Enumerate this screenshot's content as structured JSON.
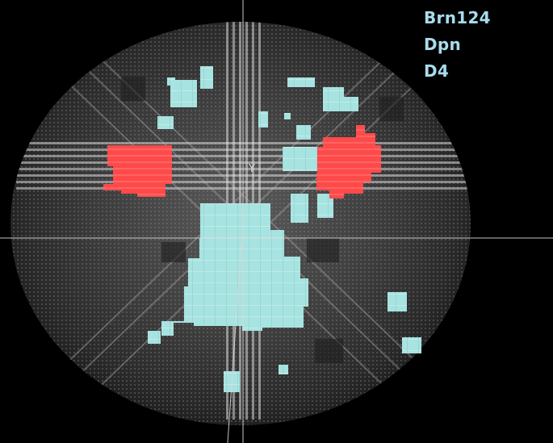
{
  "colors": {
    "background": "#000000",
    "label_text": "#a8dcec",
    "cyan_region": "#a7e3e0",
    "red_region": "#ff4a4a",
    "crosshair": "#d9d9d9"
  },
  "labels": {
    "line1": "Brn124",
    "line2": "Dpn",
    "line3": "D4"
  },
  "axis": {
    "y_label": "Y"
  }
}
